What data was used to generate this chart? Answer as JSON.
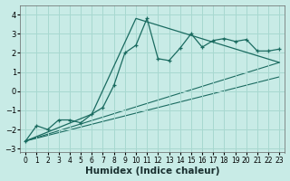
{
  "xlabel": "Humidex (Indice chaleur)",
  "background_color": "#c8ebe6",
  "grid_color": "#a8d8d0",
  "line_color": "#1a6b60",
  "xlim": [
    -0.5,
    23.5
  ],
  "ylim": [
    -3.2,
    4.5
  ],
  "xticks": [
    0,
    1,
    2,
    3,
    4,
    5,
    6,
    7,
    8,
    9,
    10,
    11,
    12,
    13,
    14,
    15,
    16,
    17,
    18,
    19,
    20,
    21,
    22,
    23
  ],
  "yticks": [
    -3,
    -2,
    -1,
    0,
    1,
    2,
    3,
    4
  ],
  "series1_x": [
    0,
    1,
    2,
    3,
    4,
    5,
    6,
    7,
    8,
    9,
    10,
    11,
    12,
    13,
    14,
    15,
    16,
    17,
    18,
    19,
    20,
    21,
    22,
    23
  ],
  "series1_y": [
    -2.6,
    -1.8,
    -2.0,
    -1.5,
    -1.5,
    -1.65,
    -1.2,
    -0.85,
    0.3,
    2.0,
    2.4,
    3.8,
    1.7,
    1.6,
    2.25,
    3.0,
    2.3,
    2.65,
    2.75,
    2.6,
    2.7,
    2.1,
    2.1,
    2.2
  ],
  "series2_x": [
    0,
    6,
    10,
    23
  ],
  "series2_y": [
    -2.6,
    -1.2,
    3.8,
    1.5
  ],
  "series3_x": [
    0,
    23
  ],
  "series3_y": [
    -2.6,
    1.5
  ],
  "series4_x": [
    0,
    23
  ],
  "series4_y": [
    -2.6,
    0.75
  ],
  "font_size_ticks": 6,
  "font_size_label": 7.5
}
